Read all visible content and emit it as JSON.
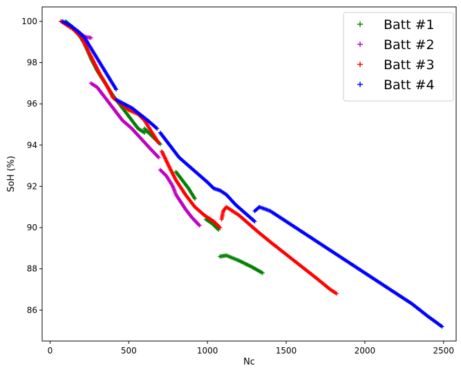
{
  "chart_data": {
    "type": "scatter",
    "title": "",
    "xlabel": "Nc",
    "ylabel": "SoH (%)",
    "xlim": [
      -50,
      2580
    ],
    "ylim": [
      84.5,
      100.7
    ],
    "xticks": [
      0,
      500,
      1000,
      1500,
      2000,
      2500
    ],
    "yticks": [
      86,
      88,
      90,
      92,
      94,
      96,
      98,
      100
    ],
    "grid": false,
    "legend": {
      "position": "top-right",
      "marker": "+"
    },
    "series": [
      {
        "name": "Batt #1",
        "color": "#008000",
        "segments": [
          [
            [
              100,
              100.0
            ],
            [
              130,
              99.8
            ],
            [
              180,
              99.4
            ],
            [
              220,
              98.9
            ],
            [
              260,
              98.2
            ],
            [
              300,
              97.6
            ],
            [
              350,
              97.0
            ],
            [
              400,
              96.4
            ],
            [
              450,
              95.9
            ],
            [
              500,
              95.4
            ],
            [
              560,
              94.8
            ],
            [
              600,
              94.6
            ]
          ],
          [
            [
              600,
              94.8
            ],
            [
              640,
              94.5
            ],
            [
              680,
              94.2
            ],
            [
              700,
              94.05
            ]
          ],
          [
            [
              800,
              92.7
            ],
            [
              840,
              92.3
            ],
            [
              880,
              91.9
            ],
            [
              920,
              91.4
            ]
          ],
          [
            [
              990,
              90.4
            ],
            [
              1030,
              90.2
            ],
            [
              1070,
              89.9
            ]
          ],
          [
            [
              1080,
              88.6
            ],
            [
              1120,
              88.65
            ],
            [
              1200,
              88.4
            ],
            [
              1280,
              88.1
            ],
            [
              1350,
              87.8
            ]
          ]
        ]
      },
      {
        "name": "Batt #2",
        "color": "#bf00bf",
        "segments": [
          [
            [
              70,
              100.0
            ],
            [
              120,
              99.8
            ],
            [
              180,
              99.5
            ],
            [
              220,
              99.25
            ],
            [
              260,
              99.2
            ]
          ],
          [
            [
              260,
              97.0
            ],
            [
              300,
              96.8
            ],
            [
              340,
              96.4
            ],
            [
              380,
              96.0
            ],
            [
              420,
              95.6
            ],
            [
              460,
              95.2
            ],
            [
              520,
              94.8
            ],
            [
              580,
              94.3
            ],
            [
              640,
              93.8
            ],
            [
              690,
              93.4
            ]
          ],
          [
            [
              700,
              92.8
            ],
            [
              740,
              92.5
            ],
            [
              780,
              92.0
            ],
            [
              800,
              91.6
            ],
            [
              860,
              90.9
            ],
            [
              900,
              90.5
            ],
            [
              950,
              90.1
            ]
          ]
        ]
      },
      {
        "name": "Batt #3",
        "color": "#ff0000",
        "segments": [
          [
            [
              70,
              100.0
            ],
            [
              110,
              99.8
            ],
            [
              150,
              99.6
            ],
            [
              200,
              99.2
            ],
            [
              240,
              98.6
            ],
            [
              280,
              98.0
            ],
            [
              320,
              97.4
            ],
            [
              360,
              96.9
            ],
            [
              400,
              96.3
            ],
            [
              450,
              96.0
            ],
            [
              500,
              95.7
            ],
            [
              560,
              95.5
            ],
            [
              600,
              95.2
            ],
            [
              640,
              94.7
            ],
            [
              690,
              94.1
            ]
          ],
          [
            [
              710,
              93.7
            ],
            [
              760,
              92.9
            ],
            [
              800,
              92.3
            ],
            [
              860,
              91.6
            ],
            [
              920,
              91.0
            ],
            [
              980,
              90.6
            ],
            [
              1040,
              90.3
            ],
            [
              1080,
              90.0
            ]
          ],
          [
            [
              1090,
              90.4
            ],
            [
              1100,
              90.8
            ],
            [
              1120,
              91.0
            ],
            [
              1160,
              90.8
            ],
            [
              1200,
              90.6
            ],
            [
              1260,
              90.2
            ],
            [
              1320,
              89.8
            ],
            [
              1400,
              89.3
            ],
            [
              1500,
              88.7
            ],
            [
              1600,
              88.1
            ],
            [
              1700,
              87.5
            ],
            [
              1780,
              87.0
            ],
            [
              1820,
              86.8
            ]
          ]
        ]
      },
      {
        "name": "Batt #4",
        "color": "#0000ff",
        "segments": [
          [
            [
              80,
              100.0
            ],
            [
              130,
              99.8
            ],
            [
              180,
              99.5
            ],
            [
              220,
              99.2
            ],
            [
              260,
              98.7
            ],
            [
              300,
              98.2
            ],
            [
              340,
              97.7
            ],
            [
              380,
              97.2
            ],
            [
              420,
              96.7
            ]
          ],
          [
            [
              420,
              96.2
            ],
            [
              470,
              96.0
            ],
            [
              520,
              95.8
            ],
            [
              570,
              95.5
            ],
            [
              620,
              95.2
            ],
            [
              680,
              94.8
            ]
          ],
          [
            [
              700,
              94.6
            ],
            [
              760,
              94.0
            ],
            [
              820,
              93.4
            ],
            [
              880,
              93.0
            ],
            [
              940,
              92.6
            ],
            [
              1000,
              92.2
            ],
            [
              1040,
              91.9
            ],
            [
              1080,
              91.8
            ],
            [
              1120,
              91.6
            ],
            [
              1180,
              91.1
            ],
            [
              1240,
              90.7
            ],
            [
              1300,
              90.3
            ]
          ],
          [
            [
              1300,
              90.8
            ],
            [
              1330,
              91.0
            ],
            [
              1400,
              90.8
            ],
            [
              1500,
              90.3
            ],
            [
              1600,
              89.8
            ],
            [
              1700,
              89.3
            ],
            [
              1800,
              88.8
            ],
            [
              1900,
              88.3
            ],
            [
              2000,
              87.8
            ],
            [
              2100,
              87.3
            ],
            [
              2200,
              86.8
            ],
            [
              2300,
              86.3
            ],
            [
              2400,
              85.7
            ],
            [
              2490,
              85.2
            ]
          ]
        ]
      }
    ]
  }
}
